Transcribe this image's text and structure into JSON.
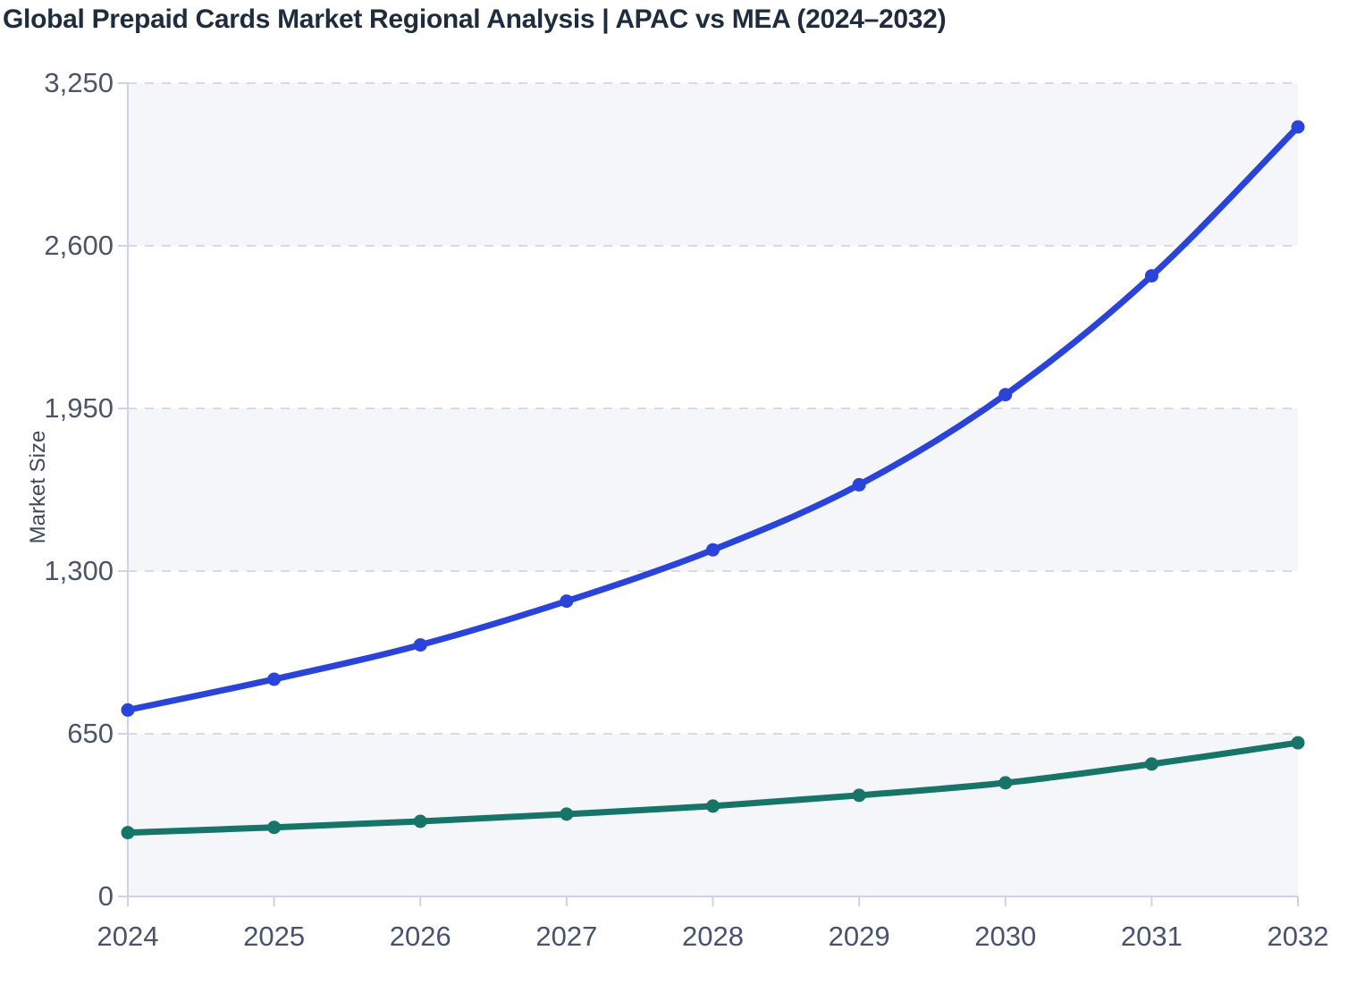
{
  "title": "Global Prepaid Cards Market Regional Analysis | APAC vs MEA (2024–2032)",
  "chart_data": {
    "type": "line",
    "x": [
      "2024",
      "2025",
      "2026",
      "2027",
      "2028",
      "2029",
      "2030",
      "2031",
      "2032"
    ],
    "xlabel": "",
    "ylabel": "Market Size",
    "ylim": [
      0,
      3250
    ],
    "yticks": [
      0,
      650,
      1300,
      1950,
      2600,
      3250
    ],
    "ytick_labels": [
      "0",
      "650",
      "1,300",
      "1,950",
      "2,600",
      "3,250"
    ],
    "grid": "horizontal-dashed",
    "plot_bands": "alternating-light",
    "legend_position": "none",
    "series": [
      {
        "name": "APAC",
        "color": "#2a44d9",
        "values": [
          745,
          868,
          1005,
          1180,
          1385,
          1645,
          2005,
          2480,
          3075
        ]
      },
      {
        "name": "MEA",
        "color": "#177468",
        "values": [
          255,
          276,
          300,
          329,
          361,
          404,
          454,
          529,
          614
        ]
      }
    ]
  },
  "colors": {
    "title_text": "#1e2c3e",
    "axis_text": "#4b5568",
    "x_axis_text": "#47536a",
    "y_axis_title_text": "#3d495c",
    "axis_line": "#c9d3ee",
    "gridline": "#d7dade",
    "band_fill": "#f4f6f9",
    "background": "#ffffff"
  }
}
